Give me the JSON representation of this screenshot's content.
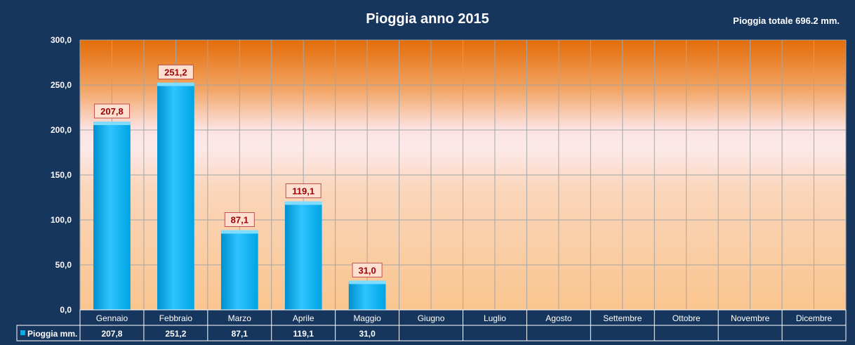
{
  "chart_data": {
    "type": "bar",
    "title": "Pioggia anno 2015",
    "subtitle": "Pioggia totale 696.2 mm.",
    "categories": [
      "Gennaio",
      "Febbraio",
      "Marzo",
      "Aprile",
      "Maggio",
      "Giugno",
      "Luglio",
      "Agosto",
      "Settembre",
      "Ottobre",
      "Novembre",
      "Dicembre"
    ],
    "series": [
      {
        "name": "Pioggia mm.",
        "values": [
          207.8,
          251.2,
          87.1,
          119.1,
          31.0,
          null,
          null,
          null,
          null,
          null,
          null,
          null
        ]
      }
    ],
    "value_labels": [
      "207,8",
      "251,2",
      "87,1",
      "119,1",
      "31,0",
      "",
      "",
      "",
      "",
      "",
      "",
      ""
    ],
    "y_ticks": [
      "0,0",
      "50,0",
      "100,0",
      "150,0",
      "200,0",
      "250,0",
      "300,0"
    ],
    "ylim": [
      0,
      300
    ],
    "grid": true,
    "legend": "data-table-bottom",
    "data_table": true
  },
  "colors": {
    "background": "#17365d",
    "bar": "#00b0f0",
    "label_text": "#9c0006",
    "label_box": "#ffe0d0"
  }
}
